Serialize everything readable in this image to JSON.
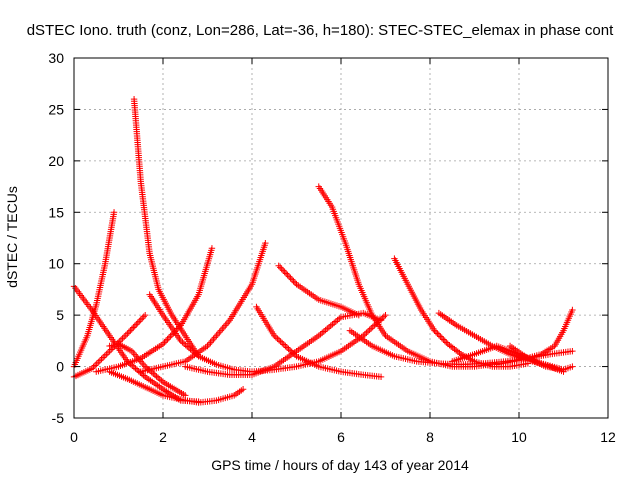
{
  "chart_data": {
    "type": "scatter",
    "title": "dSTEC Iono. truth (conz, Lon=286, Lat=-36, h=180): STEC-STEC_elemax in phase cont",
    "xlabel": "GPS time / hours of day 143 of year 2014",
    "ylabel": "dSTEC  / TECUs",
    "xlim": [
      0,
      12
    ],
    "ylim": [
      -5,
      30
    ],
    "xticks": [
      "0",
      "2",
      "4",
      "6",
      "8",
      "10",
      "12"
    ],
    "yticks": [
      "-5",
      "0",
      "5",
      "10",
      "15",
      "20",
      "25",
      "30"
    ],
    "grid": true,
    "legend": "none",
    "marker": "plus",
    "colors": {
      "series": "#ff0000",
      "grid": "#a0a0a0",
      "axis": "#000000"
    },
    "series": [
      {
        "x": [
          0.0,
          0.3,
          0.5,
          0.7,
          0.9
        ],
        "y": [
          0.0,
          3.0,
          6.0,
          10.0,
          15.0
        ]
      },
      {
        "x": [
          0.0,
          0.4,
          0.8,
          1.2,
          1.6,
          2.0,
          2.4,
          2.8
        ],
        "y": [
          7.8,
          5.5,
          3.0,
          0.5,
          -1.0,
          -2.2,
          -3.3,
          -3.4
        ]
      },
      {
        "x": [
          0.0,
          0.4,
          0.8,
          1.2,
          1.6
        ],
        "y": [
          -1.0,
          -0.2,
          1.5,
          3.2,
          5.0
        ]
      },
      {
        "x": [
          0.8,
          1.2,
          1.6,
          2.0,
          2.4,
          2.8,
          3.2,
          3.6,
          3.8
        ],
        "y": [
          -0.5,
          -1.2,
          -2.0,
          -2.8,
          -3.2,
          -3.5,
          -3.3,
          -2.8,
          -2.2
        ]
      },
      {
        "x": [
          0.8,
          1.0,
          1.3,
          1.6,
          2.0,
          2.5
        ],
        "y": [
          2.0,
          2.2,
          1.5,
          0.0,
          -1.5,
          -2.8
        ]
      },
      {
        "x": [
          1.35,
          1.5,
          1.7,
          1.9,
          2.2,
          2.5,
          2.8
        ],
        "y": [
          26.0,
          18.0,
          11.0,
          7.5,
          5.0,
          3.0,
          1.0
        ]
      },
      {
        "x": [
          1.7,
          2.0,
          2.4,
          2.8,
          3.2,
          3.6,
          4.0,
          4.5,
          5.0,
          5.5,
          6.0,
          6.5,
          7.0
        ],
        "y": [
          7.0,
          5.0,
          2.5,
          1.0,
          0.2,
          -0.3,
          -0.5,
          -0.3,
          0.0,
          0.5,
          1.5,
          3.0,
          5.0
        ]
      },
      {
        "x": [
          0.5,
          1.0,
          1.5,
          2.0,
          2.4,
          2.8,
          3.1
        ],
        "y": [
          -0.5,
          0.0,
          0.8,
          2.2,
          4.0,
          7.0,
          11.5
        ]
      },
      {
        "x": [
          1.5,
          2.0,
          2.5,
          3.0,
          3.5,
          4.0,
          4.3
        ],
        "y": [
          -0.5,
          0.0,
          0.5,
          2.0,
          4.5,
          8.0,
          12.0
        ]
      },
      {
        "x": [
          2.5,
          3.0,
          3.5,
          4.0,
          4.5,
          5.0,
          5.5,
          6.0,
          6.5,
          6.9
        ],
        "y": [
          0.0,
          -0.5,
          -0.8,
          -0.8,
          0.0,
          1.5,
          3.0,
          4.8,
          5.2,
          4.5
        ]
      },
      {
        "x": [
          4.1,
          4.5,
          5.0,
          5.5,
          6.0,
          6.5,
          6.9
        ],
        "y": [
          5.8,
          3.0,
          1.0,
          0.0,
          -0.5,
          -0.8,
          -1.0
        ]
      },
      {
        "x": [
          4.6,
          5.0,
          5.5,
          6.0,
          6.4
        ],
        "y": [
          9.8,
          8.0,
          6.5,
          5.8,
          5.0
        ]
      },
      {
        "x": [
          5.5,
          5.8,
          6.1,
          6.4,
          6.7,
          7.0,
          7.5,
          8.0,
          8.5,
          9.0,
          9.5
        ],
        "y": [
          17.5,
          15.5,
          12.0,
          8.0,
          5.0,
          3.0,
          1.5,
          0.5,
          0.0,
          0.0,
          0.3
        ]
      },
      {
        "x": [
          6.2,
          6.7,
          7.2,
          7.7,
          8.2,
          8.7,
          9.2,
          9.7,
          10.2,
          10.7,
          11.2
        ],
        "y": [
          3.5,
          2.0,
          1.0,
          0.5,
          0.3,
          0.2,
          0.3,
          0.5,
          0.8,
          1.2,
          1.5
        ]
      },
      {
        "x": [
          7.2,
          7.5,
          7.8,
          8.1,
          8.4,
          8.7,
          9.0,
          9.4,
          9.8,
          10.2
        ],
        "y": [
          10.5,
          8.0,
          5.5,
          3.5,
          2.2,
          1.2,
          0.5,
          0.0,
          0.0,
          0.3
        ]
      },
      {
        "x": [
          8.2,
          8.6,
          9.0,
          9.4,
          9.8,
          10.2,
          10.6,
          11.0
        ],
        "y": [
          5.2,
          4.0,
          3.0,
          2.0,
          1.2,
          0.6,
          0.2,
          -0.3
        ]
      },
      {
        "x": [
          8.5,
          9.0,
          9.5,
          10.0,
          10.5,
          11.0
        ],
        "y": [
          0.5,
          1.2,
          2.0,
          1.2,
          0.3,
          -0.5
        ]
      },
      {
        "x": [
          9.5,
          10.0,
          10.5,
          10.8,
          11.0,
          11.2
        ],
        "y": [
          0.2,
          0.6,
          1.2,
          2.0,
          3.5,
          5.5
        ]
      },
      {
        "x": [
          9.8,
          10.2,
          10.6,
          11.0,
          11.2
        ],
        "y": [
          2.0,
          0.8,
          0.0,
          -0.3,
          0.0
        ]
      }
    ]
  }
}
